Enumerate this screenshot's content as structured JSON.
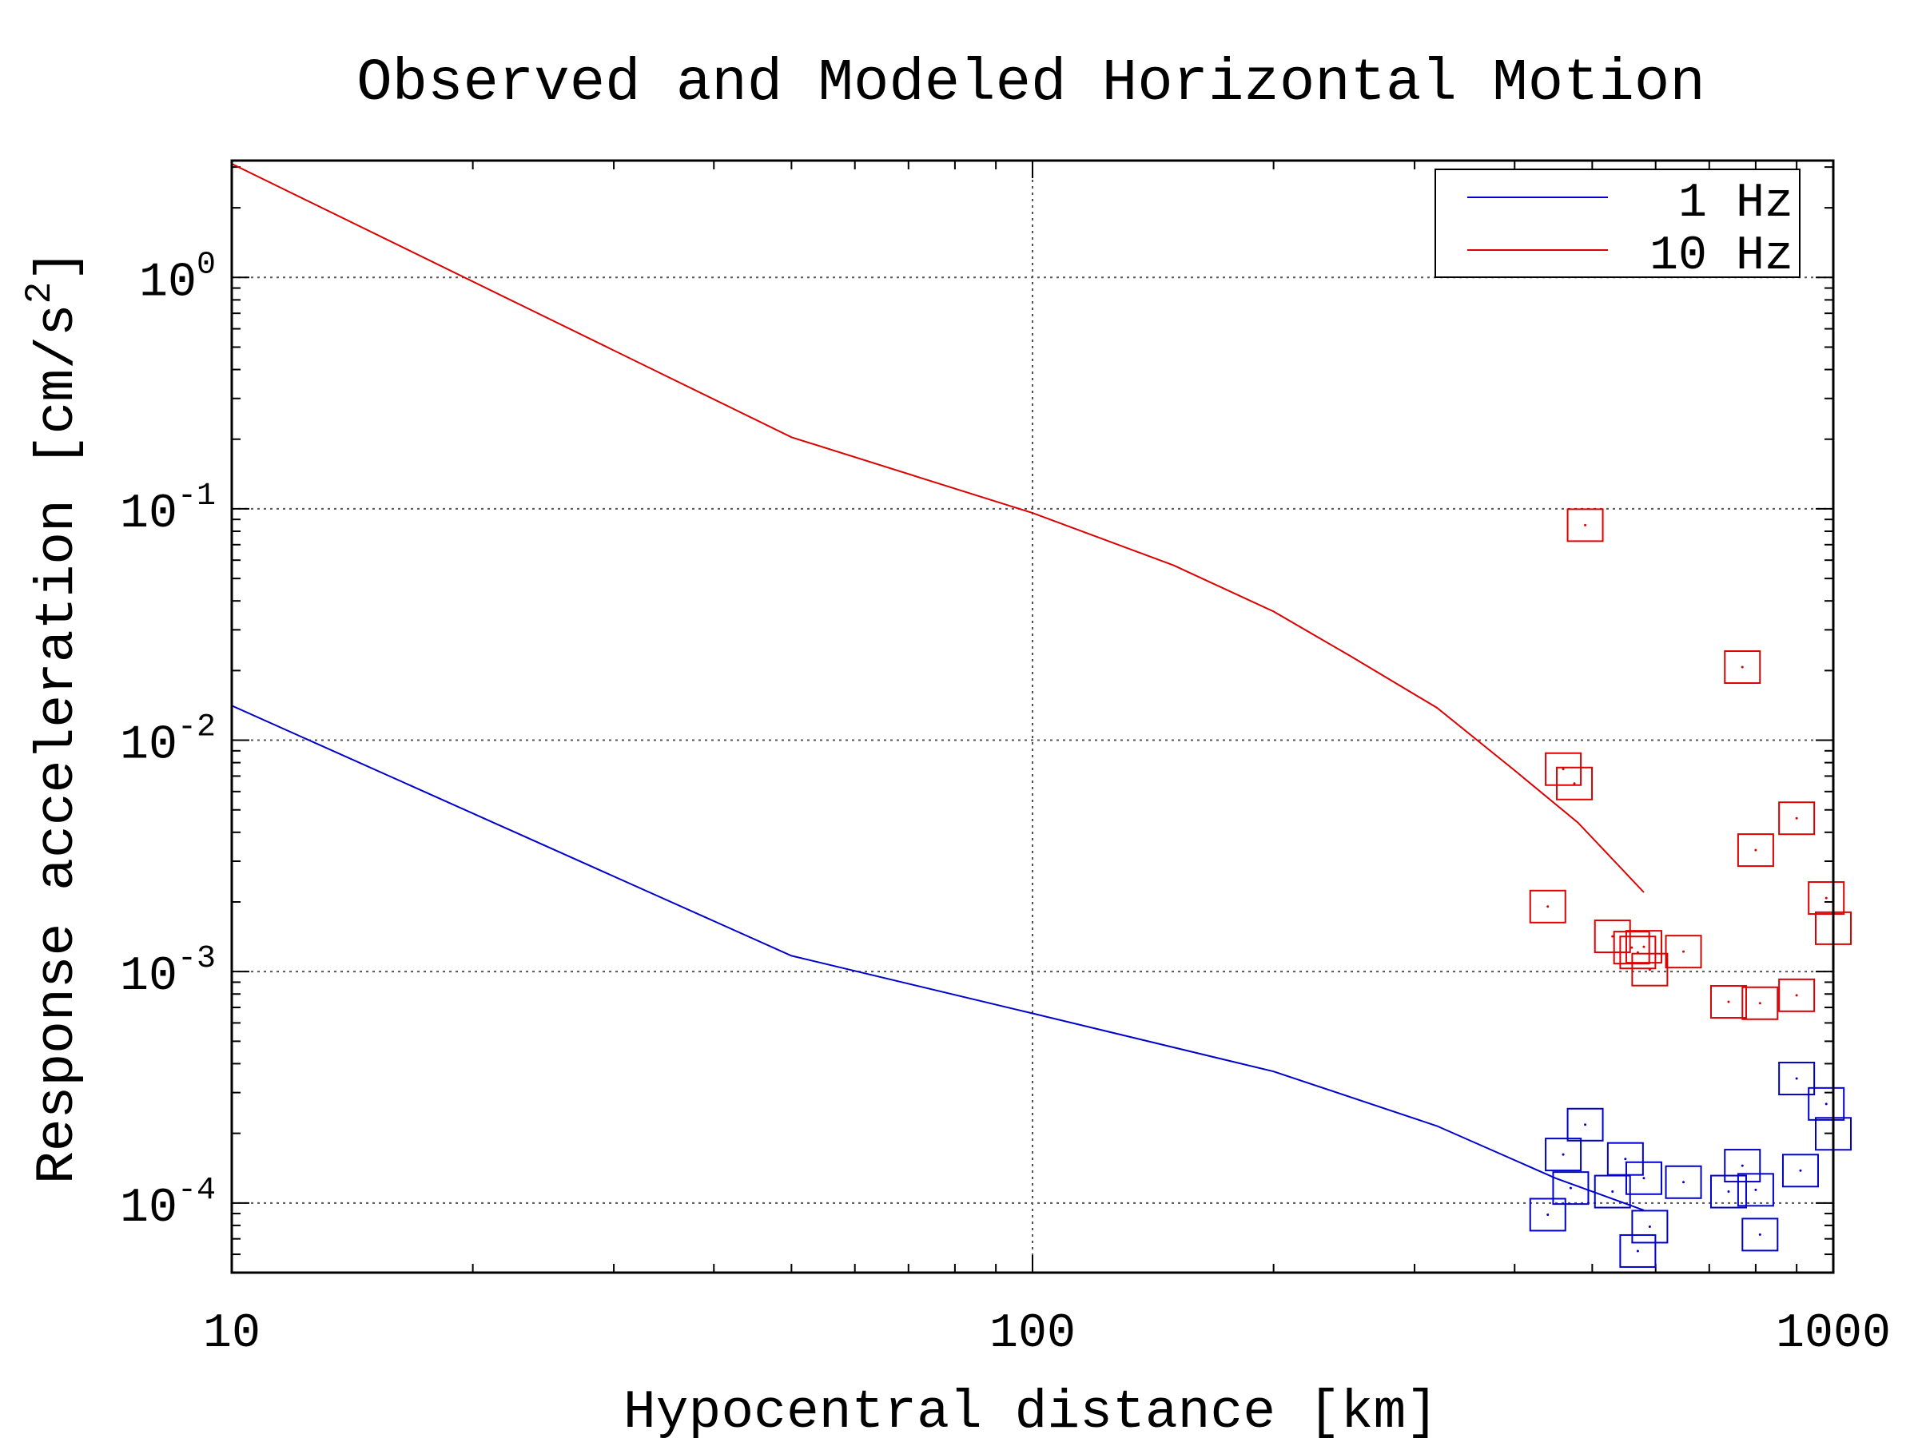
{
  "chart_data": {
    "type": "scatter",
    "title": "Observed and Modeled Horizontal Motion",
    "xlabel": "Hypocentral distance [km]",
    "ylabel": "Response acceleration [cm/s2]",
    "ylabel_main": "Response acceleration [cm/s",
    "ylabel_sup": "2",
    "ylabel_end": "]",
    "x_scale": "log",
    "y_scale": "log",
    "xlim": [
      10,
      1000
    ],
    "ylim": [
      5e-05,
      3.2
    ],
    "x_ticks": [
      {
        "value": 10,
        "label": "10"
      },
      {
        "value": 100,
        "label": "100"
      },
      {
        "value": 1000,
        "label": "1000"
      }
    ],
    "y_ticks": [
      {
        "value": 1,
        "base": "10",
        "exp": "0"
      },
      {
        "value": 0.1,
        "base": "10",
        "exp": "-1"
      },
      {
        "value": 0.01,
        "base": "10",
        "exp": "-2"
      },
      {
        "value": 0.001,
        "base": "10",
        "exp": "-3"
      },
      {
        "value": 0.0001,
        "base": "10",
        "exp": "-4"
      }
    ],
    "grid": true,
    "legend_position": "top-right",
    "series": [
      {
        "name": "1 Hz",
        "color": "#0000cc",
        "line": [
          [
            10,
            0.0141
          ],
          [
            50,
            0.00117
          ],
          [
            100,
            0.00066
          ],
          [
            200,
            0.00037
          ],
          [
            320,
            0.000215
          ],
          [
            450,
            0.000128
          ],
          [
            580,
            9.3e-05
          ]
        ],
        "points": [
          [
            440,
            8.9e-05
          ],
          [
            460,
            0.000162
          ],
          [
            470,
            0.000116
          ],
          [
            490,
            0.000218
          ],
          [
            530,
            0.000112
          ],
          [
            550,
            0.000155
          ],
          [
            570,
            6.2e-05
          ],
          [
            580,
            0.000128
          ],
          [
            590,
            7.9e-05
          ],
          [
            650,
            0.000123
          ],
          [
            740,
            0.000112
          ],
          [
            770,
            0.000145
          ],
          [
            800,
            0.000114
          ],
          [
            810,
            7.3e-05
          ],
          [
            900,
            0.000345
          ],
          [
            910,
            0.000138
          ],
          [
            980,
            0.000268
          ],
          [
            1000,
            0.000199
          ]
        ]
      },
      {
        "name": "10 Hz",
        "color": "#dd0000",
        "line": [
          [
            10,
            3.1
          ],
          [
            50,
            0.204
          ],
          [
            100,
            0.096
          ],
          [
            150,
            0.057
          ],
          [
            200,
            0.036
          ],
          [
            250,
            0.023
          ],
          [
            320,
            0.0138
          ],
          [
            400,
            0.0074
          ],
          [
            480,
            0.0044
          ],
          [
            580,
            0.0022
          ]
        ],
        "points": [
          [
            440,
            0.00191
          ],
          [
            460,
            0.0075
          ],
          [
            475,
            0.0065
          ],
          [
            490,
            0.085
          ],
          [
            530,
            0.00142
          ],
          [
            560,
            0.00127
          ],
          [
            570,
            0.00121
          ],
          [
            580,
            0.00128
          ],
          [
            590,
            0.00102
          ],
          [
            650,
            0.00122
          ],
          [
            740,
            0.00074
          ],
          [
            770,
            0.0207
          ],
          [
            810,
            0.00073
          ],
          [
            800,
            0.00335
          ],
          [
            900,
            0.0046
          ],
          [
            900,
            0.00079
          ],
          [
            980,
            0.00208
          ],
          [
            1000,
            0.00154
          ]
        ]
      }
    ]
  }
}
